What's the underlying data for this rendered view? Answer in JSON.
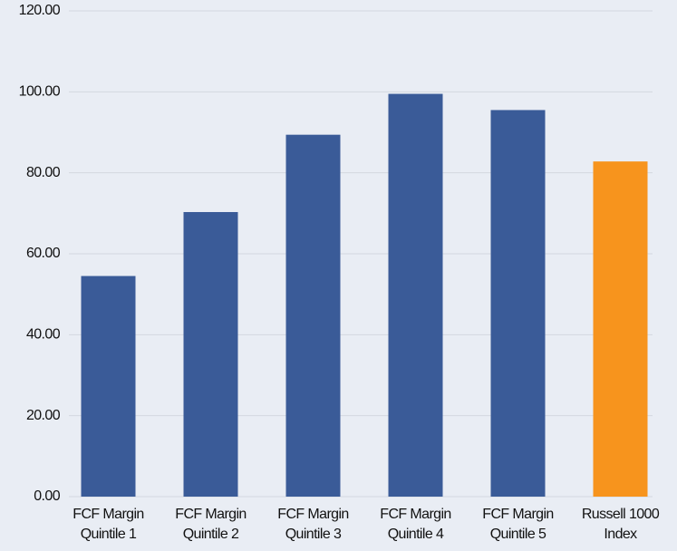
{
  "chart_data": {
    "type": "bar",
    "categories": [
      [
        "FCF Margin",
        "Quintile 1"
      ],
      [
        "FCF Margin",
        "Quintile 2"
      ],
      [
        "FCF Margin",
        "Quintile 3"
      ],
      [
        "FCF Margin",
        "Quintile 4"
      ],
      [
        "FCF Margin",
        "Quintile 5"
      ],
      [
        "Russell 1000",
        "Index"
      ]
    ],
    "values": [
      54.5,
      70.3,
      89.4,
      99.5,
      95.5,
      82.8
    ],
    "colors": [
      "#3a5b98",
      "#3a5b98",
      "#3a5b98",
      "#3a5b98",
      "#3a5b98",
      "#f7941d"
    ],
    "ylim": [
      0,
      120
    ],
    "yticks": [
      {
        "value": 0,
        "label": "0.00"
      },
      {
        "value": 20,
        "label": "20.00"
      },
      {
        "value": 40,
        "label": "40.00"
      },
      {
        "value": 60,
        "label": "60.00"
      },
      {
        "value": 80,
        "label": "80.00"
      },
      {
        "value": 100,
        "label": "100.00"
      },
      {
        "value": 120,
        "label": "120.00"
      }
    ],
    "grid": true
  }
}
